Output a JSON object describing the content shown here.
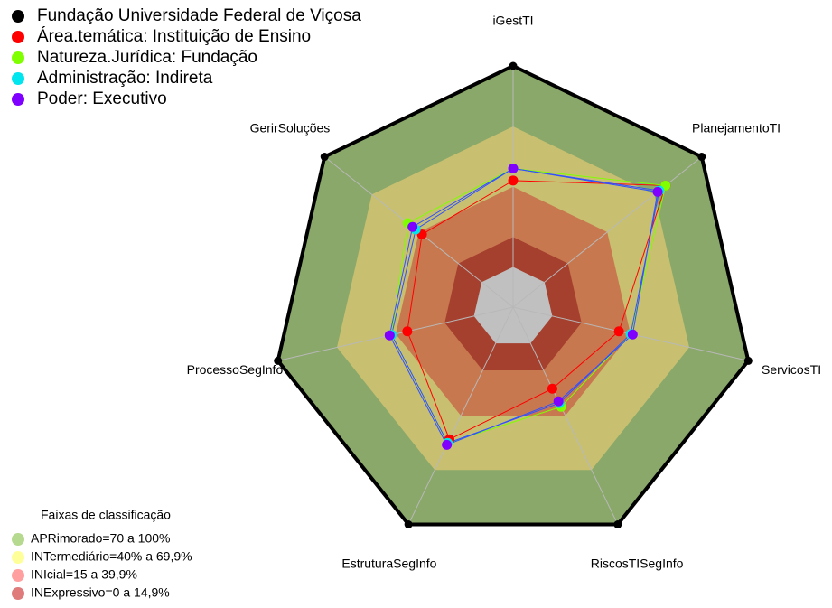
{
  "chart_data": {
    "type": "radar",
    "categories": [
      "iGestTI",
      "PlanejamentoTI",
      "ServicosTI",
      "RiscosTISegInfo",
      "EstruturaSegInfo",
      "ProcessoSegInfo",
      "GerirSoluções"
    ],
    "ylim": [
      -20,
      100
    ],
    "center_color": "#c0c0c0",
    "series": [
      {
        "name": "Fundação Universidade Federal de Viçosa",
        "color": "#000000",
        "values": [
          100,
          100,
          100,
          100,
          100,
          100,
          100
        ]
      },
      {
        "name": "Área.temática: Instituição de Ensino",
        "color": "#ff0000",
        "values": [
          43,
          77,
          34,
          25,
          53,
          34,
          38
        ]
      },
      {
        "name": "Natureza.Jurídica: Fundação",
        "color": "#7fff00",
        "values": [
          49,
          77,
          40,
          35,
          55,
          42,
          47
        ]
      },
      {
        "name": "Administração: Indireta",
        "color": "#00e5ee",
        "values": [
          49,
          73,
          40,
          33,
          55,
          42,
          42
        ]
      },
      {
        "name": "Poder: Executivo",
        "color": "#7f00ff",
        "values": [
          49,
          72,
          41,
          32,
          56,
          43,
          44
        ]
      }
    ],
    "bands_title": "Faixas de classificação",
    "bands": [
      {
        "label": "APRimorado=70 a 100%",
        "upper": 100,
        "color": "#8aa86a",
        "legend_color": "#b5d98e"
      },
      {
        "label": "INTermediário=40% a 69,9%",
        "upper": 69.9,
        "color": "#c8c070",
        "legend_color": "#ffff99"
      },
      {
        "label": "INIcial=15 a 39,9%",
        "upper": 39.9,
        "color": "#c8784f",
        "legend_color": "#ff9f9f"
      },
      {
        "label": "INExpressivo=0 a 14,9%",
        "upper": 14.9,
        "color": "#a53f2e",
        "legend_color": "#e07b7b"
      }
    ]
  }
}
